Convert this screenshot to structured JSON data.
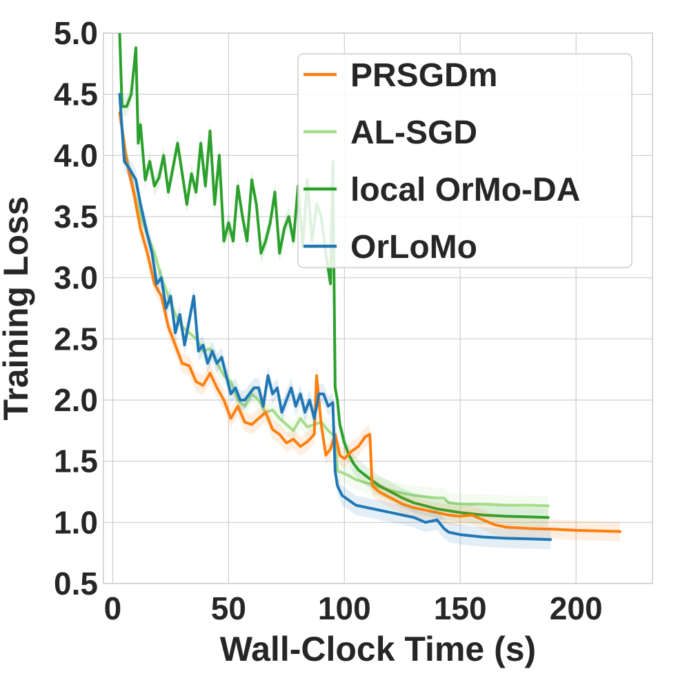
{
  "chart_data": {
    "type": "line",
    "title": "",
    "xlabel": "Wall-Clock Time (s)",
    "ylabel": "Training Loss",
    "xlim": [
      -4,
      233
    ],
    "ylim": [
      0.5,
      5.0
    ],
    "xticks": [
      0,
      50,
      100,
      150,
      200
    ],
    "yticks": [
      0.5,
      1.0,
      1.5,
      2.0,
      2.5,
      3.0,
      3.5,
      4.0,
      4.5,
      5.0
    ],
    "xtick_labels": [
      "0",
      "50",
      "100",
      "150",
      "200"
    ],
    "ytick_labels": [
      "0.5",
      "1.0",
      "1.5",
      "2.0",
      "2.5",
      "3.0",
      "3.5",
      "4.0",
      "4.5",
      "5.0"
    ],
    "grid": true,
    "legend_position": "upper-right",
    "series": [
      {
        "name": "PRSGDm",
        "color": "#ff7f0e",
        "x": [
          3,
          6,
          9,
          12,
          15,
          18,
          21,
          24,
          27,
          30,
          33,
          36,
          39,
          42,
          45,
          48,
          51,
          54,
          57,
          60,
          63,
          66,
          69,
          72,
          75,
          78,
          81,
          84,
          87,
          88,
          90,
          92,
          94,
          96,
          98,
          100,
          103,
          106,
          109,
          111,
          112,
          115,
          120,
          125,
          130,
          135,
          140,
          145,
          150,
          155,
          160,
          165,
          170,
          175,
          180,
          190,
          200,
          210,
          219
        ],
        "y": [
          4.35,
          3.95,
          3.7,
          3.4,
          3.2,
          2.95,
          2.85,
          2.6,
          2.45,
          2.3,
          2.28,
          2.15,
          2.12,
          2.22,
          2.1,
          2.0,
          1.85,
          1.95,
          1.82,
          1.8,
          1.85,
          1.9,
          1.76,
          1.72,
          1.65,
          1.68,
          1.62,
          1.66,
          1.72,
          2.2,
          1.8,
          1.55,
          1.6,
          1.72,
          1.55,
          1.52,
          1.58,
          1.62,
          1.7,
          1.72,
          1.3,
          1.25,
          1.2,
          1.15,
          1.12,
          1.1,
          1.08,
          1.06,
          1.05,
          1.06,
          1.02,
          0.98,
          0.96,
          0.955,
          0.95,
          0.945,
          0.935,
          0.93,
          0.925
        ]
      },
      {
        "name": "AL-SGD",
        "color": "#a6dc8a",
        "x": [
          3,
          6,
          9,
          12,
          15,
          18,
          21,
          24,
          27,
          30,
          33,
          36,
          39,
          42,
          45,
          48,
          51,
          54,
          57,
          60,
          63,
          66,
          69,
          72,
          75,
          78,
          81,
          84,
          87,
          90,
          93,
          96,
          97,
          100,
          105,
          110,
          115,
          120,
          125,
          130,
          135,
          140,
          143,
          145,
          150,
          160,
          170,
          180,
          188
        ],
        "y": [
          4.35,
          3.98,
          3.72,
          3.5,
          3.35,
          3.2,
          3.0,
          2.85,
          2.7,
          2.6,
          2.55,
          2.5,
          2.4,
          2.42,
          2.3,
          2.2,
          2.15,
          2.0,
          1.95,
          2.05,
          2.0,
          1.9,
          1.92,
          1.85,
          1.8,
          1.75,
          1.85,
          1.78,
          1.8,
          1.82,
          1.75,
          1.7,
          1.42,
          1.4,
          1.35,
          1.32,
          1.29,
          1.26,
          1.24,
          1.22,
          1.21,
          1.2,
          1.2,
          1.16,
          1.15,
          1.15,
          1.14,
          1.14,
          1.135
        ]
      },
      {
        "name": "local OrMo-DA",
        "color": "#2ca02c",
        "x": [
          3,
          4,
          6,
          8,
          10,
          11,
          12,
          14,
          16,
          18,
          20,
          22,
          24,
          26,
          28,
          30,
          32,
          34,
          36,
          38,
          40,
          42,
          44,
          46,
          48,
          50,
          52,
          54,
          56,
          58,
          60,
          62,
          64,
          66,
          68,
          70,
          72,
          74,
          76,
          78,
          80,
          82,
          84,
          86,
          88,
          90,
          92,
          94,
          95,
          96,
          97,
          98,
          100,
          102,
          104,
          106,
          108,
          110,
          115,
          120,
          125,
          130,
          140,
          150,
          160,
          170,
          180,
          188
        ],
        "y": [
          5.0,
          4.4,
          4.4,
          4.5,
          4.88,
          4.1,
          4.25,
          3.8,
          3.95,
          3.75,
          3.82,
          4.0,
          3.7,
          3.9,
          4.1,
          3.85,
          3.6,
          3.85,
          3.7,
          4.1,
          3.75,
          4.2,
          3.6,
          4.0,
          3.3,
          3.45,
          3.3,
          3.75,
          3.5,
          3.3,
          3.8,
          3.6,
          3.2,
          3.3,
          3.45,
          3.7,
          3.2,
          3.4,
          3.5,
          3.3,
          3.75,
          3.25,
          3.8,
          3.3,
          3.6,
          3.5,
          3.2,
          2.95,
          3.95,
          2.1,
          2.0,
          1.8,
          1.65,
          1.55,
          1.48,
          1.43,
          1.4,
          1.37,
          1.3,
          1.25,
          1.2,
          1.16,
          1.11,
          1.08,
          1.06,
          1.05,
          1.045,
          1.04
        ]
      },
      {
        "name": "OrLoMo",
        "color": "#1f77b4",
        "x": [
          3,
          5,
          7,
          10,
          12,
          15,
          17,
          19,
          21,
          23,
          25,
          27,
          29,
          31,
          33,
          35,
          37,
          39,
          41,
          43,
          45,
          47,
          49,
          51,
          53,
          55,
          57,
          59,
          61,
          63,
          65,
          67,
          69,
          71,
          73,
          75,
          77,
          79,
          81,
          83,
          85,
          87,
          89,
          91,
          93,
          95,
          96,
          97,
          99,
          102,
          105,
          110,
          115,
          120,
          125,
          130,
          135,
          140,
          143,
          145,
          150,
          160,
          170,
          180,
          189
        ],
        "y": [
          4.5,
          3.95,
          3.9,
          3.8,
          3.6,
          3.35,
          3.2,
          2.95,
          3.0,
          2.75,
          2.85,
          2.55,
          2.7,
          2.45,
          2.65,
          2.85,
          2.4,
          2.45,
          2.3,
          2.4,
          2.3,
          2.35,
          2.2,
          2.05,
          2.1,
          2.0,
          2.0,
          2.05,
          2.1,
          2.1,
          1.95,
          2.2,
          2.05,
          2.1,
          1.9,
          2.0,
          2.1,
          1.95,
          2.05,
          1.9,
          2.0,
          1.85,
          2.05,
          2.05,
          1.95,
          1.98,
          1.42,
          1.3,
          1.22,
          1.18,
          1.14,
          1.12,
          1.1,
          1.08,
          1.06,
          1.04,
          1.0,
          1.02,
          0.95,
          0.92,
          0.9,
          0.88,
          0.87,
          0.865,
          0.86
        ]
      }
    ]
  }
}
